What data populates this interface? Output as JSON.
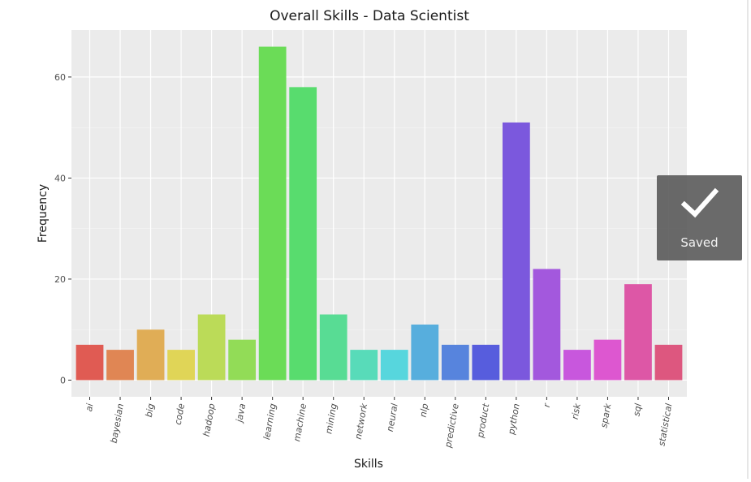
{
  "chart_data": {
    "type": "bar",
    "title": "Overall Skills - Data Scientist",
    "xlabel": "Skills",
    "ylabel": "Frequency",
    "categories": [
      "ai",
      "bayesian",
      "big",
      "code",
      "hadoop",
      "java",
      "learning",
      "machine",
      "mining",
      "network",
      "neural",
      "nlp",
      "predictive",
      "product",
      "python",
      "r",
      "risk",
      "spark",
      "sql",
      "statistical"
    ],
    "values": [
      7,
      6,
      10,
      6,
      13,
      8,
      66,
      58,
      13,
      6,
      6,
      11,
      7,
      7,
      51,
      22,
      6,
      8,
      19,
      7
    ],
    "colors": [
      "#e05b53",
      "#e08654",
      "#e0ad56",
      "#e0d557",
      "#bbdb58",
      "#92dc57",
      "#6bdc57",
      "#58dc6e",
      "#58dc94",
      "#58dbb9",
      "#57d6dd",
      "#57aedd",
      "#5784dd",
      "#575ddd",
      "#7b58dd",
      "#a358dd",
      "#c857dd",
      "#dd57d0",
      "#dd57a6",
      "#dd577f"
    ],
    "yticks": [
      0,
      20,
      40,
      60
    ],
    "ylim": [
      -3.3,
      69.3
    ],
    "grid": true,
    "legend": "none"
  },
  "toast": {
    "label": "Saved",
    "icon": "checkmark-icon"
  }
}
